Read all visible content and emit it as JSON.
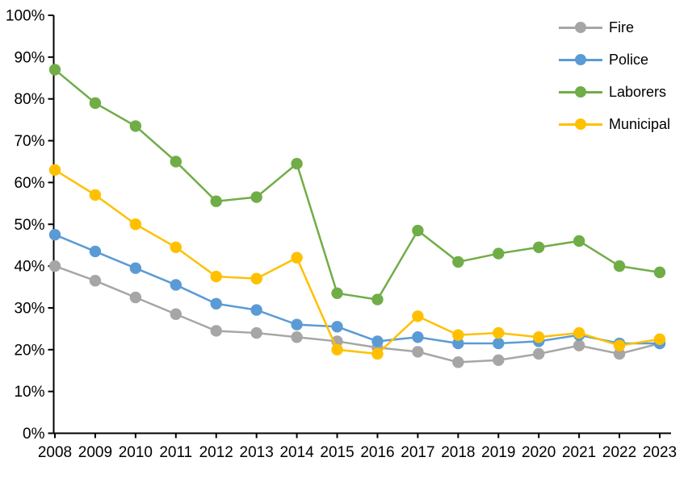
{
  "chart_data": {
    "type": "line",
    "title": "",
    "xlabel": "",
    "ylabel": "",
    "x": [
      "2008",
      "2009",
      "2010",
      "2011",
      "2012",
      "2013",
      "2014",
      "2015",
      "2016",
      "2017",
      "2018",
      "2019",
      "2020",
      "2021",
      "2022",
      "2023"
    ],
    "series": [
      {
        "name": "Fire",
        "color": "#a6a6a6",
        "values": [
          40,
          36.5,
          32.5,
          28.5,
          24.5,
          24,
          23,
          22,
          20.5,
          19.5,
          17,
          17.5,
          19,
          21,
          19,
          21.5
        ]
      },
      {
        "name": "Police",
        "color": "#5b9bd5",
        "values": [
          47.5,
          43.5,
          39.5,
          35.5,
          31,
          29.5,
          26,
          25.5,
          22,
          23,
          21.5,
          21.5,
          22,
          23.5,
          21.5,
          21.5
        ]
      },
      {
        "name": "Laborers",
        "color": "#70ad47",
        "values": [
          87,
          79,
          73.5,
          65,
          55.5,
          56.5,
          64.5,
          33.5,
          32,
          48.5,
          41,
          43,
          44.5,
          46,
          40,
          38.5
        ]
      },
      {
        "name": "Municipal",
        "color": "#ffc000",
        "values": [
          63,
          57,
          50,
          44.5,
          37.5,
          37,
          42,
          20,
          19,
          28,
          23.5,
          24,
          23,
          24,
          21,
          22.5
        ]
      }
    ],
    "ylim": [
      0,
      100
    ],
    "ytick_labels": [
      "0%",
      "10%",
      "20%",
      "30%",
      "40%",
      "50%",
      "60%",
      "70%",
      "80%",
      "90%",
      "100%"
    ],
    "grid": false,
    "legend_position": "top-right",
    "axis_color": "#000000",
    "label_color": "#000000"
  }
}
